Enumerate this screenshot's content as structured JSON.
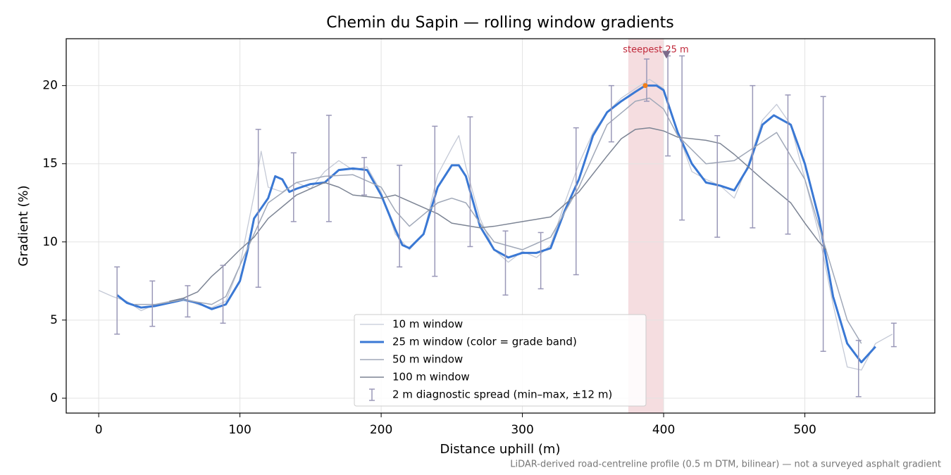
{
  "chart_data": {
    "type": "line",
    "title": "Chemin du Sapin — rolling window gradients",
    "xlabel": "Distance uphill (m)",
    "ylabel": "Gradient (%)",
    "footnote": "LiDAR-derived road-centreline profile (0.5 m DTM, bilinear) — not a surveyed asphalt gradient",
    "xlim": [
      -23,
      592
    ],
    "ylim": [
      -0.95,
      23
    ],
    "xticks": [
      0,
      100,
      200,
      300,
      400,
      500
    ],
    "yticks": [
      0,
      5,
      10,
      15,
      20
    ],
    "grid": true,
    "legend": "lower center",
    "highlight": {
      "x": [
        375,
        400
      ],
      "label": "steepest 25 m",
      "color": "#e8b4ba"
    },
    "steepest_point": {
      "x": 387,
      "y": 20.0,
      "color": "#f07d1a"
    },
    "steepest_marker": {
      "x": 402,
      "y": 22.0,
      "color": "#7a6a8a"
    },
    "series": [
      {
        "name": "10 m window",
        "color": "#c4c9d6",
        "x": [
          0,
          10,
          20,
          30,
          40,
          50,
          60,
          70,
          80,
          90,
          100,
          110,
          115,
          120,
          130,
          140,
          150,
          160,
          170,
          180,
          190,
          200,
          210,
          220,
          230,
          240,
          250,
          255,
          260,
          270,
          280,
          290,
          300,
          310,
          320,
          330,
          340,
          350,
          360,
          370,
          380,
          390,
          400,
          410,
          420,
          430,
          440,
          450,
          460,
          470,
          480,
          490,
          500,
          510,
          520,
          530,
          540,
          550,
          562
        ],
        "values": [
          6.9,
          6.5,
          6.2,
          5.6,
          6.0,
          6.2,
          6.4,
          6.0,
          5.8,
          6.2,
          8.5,
          13.0,
          15.8,
          13.5,
          13.2,
          13.8,
          13.4,
          14.5,
          15.2,
          14.6,
          14.8,
          13.2,
          10.5,
          9.5,
          10.5,
          14.3,
          16.0,
          16.8,
          14.8,
          11.5,
          9.5,
          8.7,
          9.4,
          9.0,
          9.8,
          12.5,
          15.0,
          17.0,
          18.3,
          19.2,
          19.8,
          20.4,
          19.8,
          17.0,
          14.5,
          14.0,
          13.6,
          12.8,
          15.0,
          17.8,
          18.8,
          17.5,
          14.0,
          10.5,
          6.0,
          2.0,
          1.8,
          3.5,
          4.1
        ]
      },
      {
        "name": "25 m window (color = grade band)",
        "color": "#3a78d4",
        "x": [
          13,
          20,
          30,
          40,
          50,
          60,
          70,
          80,
          90,
          100,
          105,
          110,
          120,
          125,
          130,
          135,
          140,
          150,
          160,
          170,
          180,
          190,
          200,
          210,
          215,
          220,
          230,
          240,
          250,
          255,
          260,
          270,
          280,
          290,
          300,
          310,
          320,
          330,
          340,
          350,
          360,
          370,
          380,
          387,
          395,
          400,
          410,
          420,
          430,
          440,
          450,
          460,
          470,
          478,
          490,
          500,
          510,
          520,
          530,
          540,
          550
        ],
        "values": [
          6.6,
          6.1,
          5.8,
          5.9,
          6.1,
          6.3,
          6.1,
          5.7,
          6.0,
          7.5,
          9.3,
          11.5,
          12.8,
          14.2,
          14.0,
          13.2,
          13.4,
          13.7,
          13.8,
          14.6,
          14.7,
          14.6,
          13.0,
          10.8,
          9.8,
          9.6,
          10.5,
          13.5,
          14.9,
          14.9,
          14.2,
          11.0,
          9.5,
          9.0,
          9.3,
          9.3,
          9.6,
          12.0,
          14.0,
          16.8,
          18.3,
          19.0,
          19.6,
          20.0,
          20.0,
          19.7,
          17.0,
          15.0,
          13.8,
          13.6,
          13.3,
          14.8,
          17.5,
          18.1,
          17.5,
          15.0,
          11.5,
          6.5,
          3.5,
          2.3,
          3.3
        ]
      },
      {
        "name": "50 m window",
        "color": "#a0a8b8",
        "x": [
          25,
          40,
          60,
          80,
          90,
          100,
          110,
          120,
          140,
          160,
          180,
          200,
          210,
          220,
          240,
          250,
          260,
          270,
          280,
          300,
          320,
          340,
          360,
          380,
          390,
          400,
          410,
          430,
          450,
          460,
          480,
          500,
          510,
          520,
          530,
          540
        ],
        "values": [
          6.0,
          6.0,
          6.3,
          6.0,
          6.5,
          8.5,
          10.5,
          12.5,
          13.8,
          14.2,
          14.3,
          13.5,
          12.0,
          11.0,
          12.5,
          12.8,
          12.5,
          11.2,
          10.0,
          9.5,
          10.3,
          13.5,
          17.5,
          19.0,
          19.2,
          18.5,
          16.8,
          15.0,
          15.2,
          15.8,
          17.0,
          14.0,
          11.0,
          8.0,
          5.0,
          3.5
        ]
      },
      {
        "name": "100 m window",
        "color": "#7c8494",
        "x": [
          50,
          60,
          70,
          80,
          90,
          100,
          110,
          120,
          140,
          160,
          170,
          180,
          200,
          210,
          220,
          240,
          250,
          270,
          280,
          300,
          320,
          340,
          360,
          370,
          380,
          390,
          400,
          410,
          430,
          440,
          450,
          470,
          490,
          500,
          510,
          515
        ],
        "values": [
          6.2,
          6.4,
          6.8,
          7.8,
          8.6,
          9.5,
          10.3,
          11.5,
          13.0,
          13.8,
          13.5,
          13.0,
          12.8,
          13.0,
          12.6,
          11.8,
          11.2,
          10.9,
          11.0,
          11.3,
          11.6,
          13.2,
          15.5,
          16.6,
          17.2,
          17.3,
          17.1,
          16.7,
          16.5,
          16.3,
          15.6,
          14.0,
          12.5,
          11.2,
          10.0,
          9.5
        ]
      }
    ],
    "spread": {
      "name": "2 m diagnostic spread (min–max, ±12 m)",
      "color": "#9a98b8",
      "x": [
        13,
        38,
        63,
        88,
        113,
        138,
        163,
        188,
        213,
        238,
        263,
        288,
        313,
        338,
        363,
        388,
        403,
        413,
        438,
        463,
        488,
        513,
        538,
        563
      ],
      "low": [
        4.1,
        4.6,
        5.2,
        4.8,
        7.1,
        11.3,
        11.3,
        13.0,
        8.4,
        7.8,
        9.7,
        6.6,
        7.0,
        7.9,
        16.4,
        19.0,
        15.5,
        11.4,
        10.3,
        10.9,
        10.5,
        3.0,
        0.1,
        3.3
      ],
      "high": [
        8.4,
        7.5,
        7.2,
        8.5,
        17.2,
        15.7,
        18.1,
        15.4,
        14.9,
        17.4,
        18.0,
        10.7,
        10.6,
        17.3,
        20.0,
        21.7,
        21.9,
        21.9,
        16.8,
        20.0,
        19.4,
        19.3,
        3.7,
        4.8
      ]
    }
  }
}
